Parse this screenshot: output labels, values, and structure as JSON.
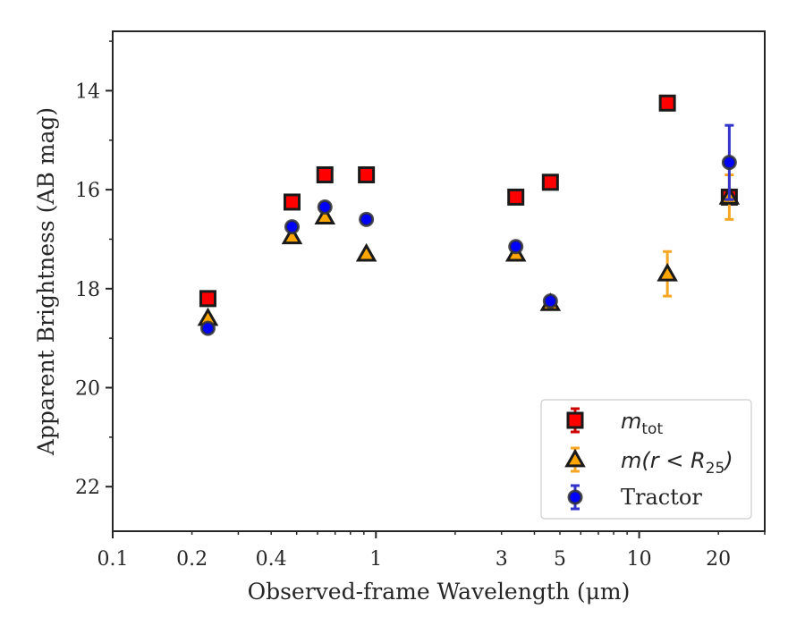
{
  "chart_data": {
    "type": "scatter",
    "xscale": "log",
    "xlim": [
      0.1,
      30
    ],
    "ylim": [
      22.9,
      12.8
    ],
    "y_inverted": true,
    "xlabel": "Observed-frame Wavelength (μm)",
    "ylabel": "Apparent Brightness (AB mag)",
    "x_ticks": [
      0.1,
      0.2,
      0.4,
      1,
      3,
      5,
      10,
      20
    ],
    "x_tick_labels": [
      "0.1",
      "0.2",
      "0.4",
      "1",
      "3",
      "5",
      "10",
      "20"
    ],
    "y_ticks": [
      14,
      16,
      18,
      20,
      22
    ],
    "y_tick_labels": [
      "14",
      "16",
      "18",
      "20",
      "22"
    ],
    "grid": false,
    "legend_position": "lower-right",
    "series": [
      {
        "name": "m_tot",
        "legend_main": "m",
        "legend_sub": "tot",
        "marker": "square",
        "face_color": "#ff0000",
        "edge_color": "#1a1a1a",
        "error_color": "#cc0000",
        "points": [
          {
            "x": 0.23,
            "y": 18.2,
            "err": 0.05
          },
          {
            "x": 0.48,
            "y": 16.25,
            "err": 0.05
          },
          {
            "x": 0.64,
            "y": 15.7,
            "err": 0.05
          },
          {
            "x": 0.92,
            "y": 15.7,
            "err": 0.05
          },
          {
            "x": 3.4,
            "y": 16.15,
            "err": 0.05
          },
          {
            "x": 4.6,
            "y": 15.85,
            "err": 0.05
          },
          {
            "x": 12.8,
            "y": 14.25,
            "err": 0.05
          },
          {
            "x": 22.0,
            "y": 16.15,
            "err": 0.05
          }
        ]
      },
      {
        "name": "m(r < R25)",
        "legend_main": "m(r < R",
        "legend_sub": "25",
        "legend_close": ")",
        "marker": "triangle",
        "face_color": "#ffa500",
        "edge_color": "#1a1a1a",
        "error_color": "#f5a623",
        "points": [
          {
            "x": 0.23,
            "y": 18.6,
            "err": 0.05
          },
          {
            "x": 0.48,
            "y": 16.95,
            "err": 0.05
          },
          {
            "x": 0.64,
            "y": 16.55,
            "err": 0.05
          },
          {
            "x": 0.92,
            "y": 17.3,
            "err": 0.05
          },
          {
            "x": 3.4,
            "y": 17.3,
            "err": 0.05
          },
          {
            "x": 4.6,
            "y": 18.3,
            "err": 0.05
          },
          {
            "x": 12.8,
            "y": 17.7,
            "err": 0.45
          },
          {
            "x": 22.0,
            "y": 16.15,
            "err": 0.45
          }
        ]
      },
      {
        "name": "Tractor",
        "marker": "circle",
        "face_color": "#0000ff",
        "edge_color": "#333333",
        "error_color": "#3333cc",
        "points": [
          {
            "x": 0.23,
            "y": 18.8,
            "err": 0.05
          },
          {
            "x": 0.48,
            "y": 16.75,
            "err": 0.05
          },
          {
            "x": 0.64,
            "y": 16.35,
            "err": 0.05
          },
          {
            "x": 0.92,
            "y": 16.6,
            "err": 0.05
          },
          {
            "x": 3.4,
            "y": 17.15,
            "err": 0.05
          },
          {
            "x": 4.6,
            "y": 18.25,
            "err": 0.05
          },
          {
            "x": 22.0,
            "y": 15.45,
            "err": 0.75
          }
        ]
      }
    ]
  }
}
